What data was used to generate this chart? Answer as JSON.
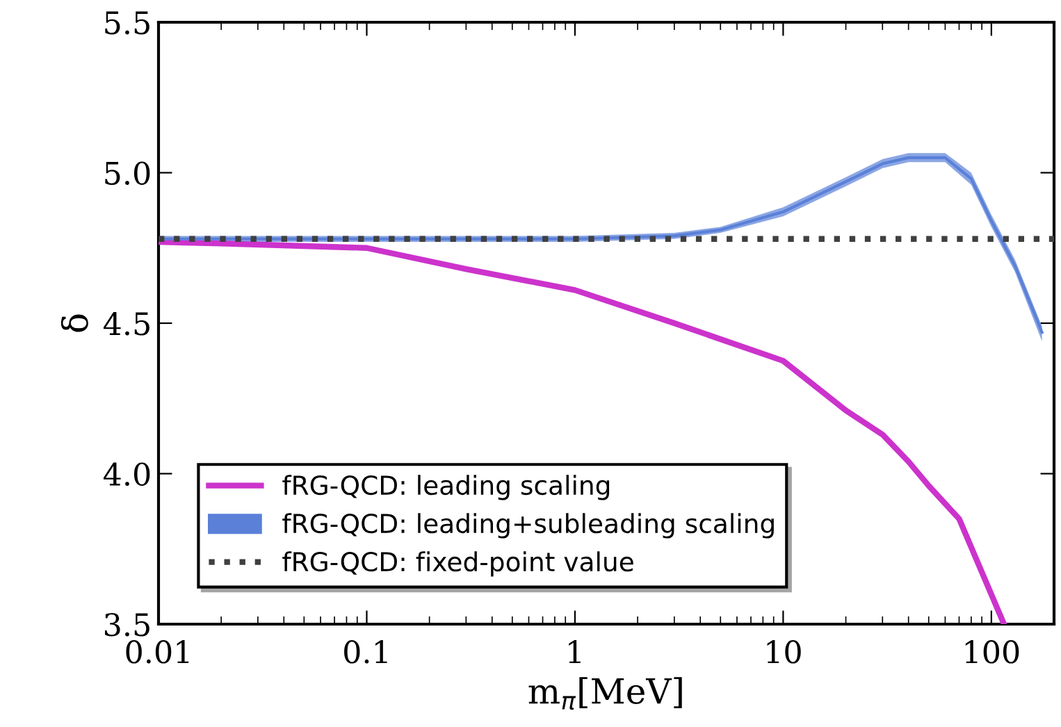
{
  "chart_data": {
    "type": "line",
    "xlabel": "m$_{π}$[MeV]",
    "ylabel": "δ",
    "log": "x",
    "xlim": [
      0.01,
      200
    ],
    "xticks": [
      {
        "value": 0.01,
        "label": "0.01"
      },
      {
        "value": 0.1,
        "label": "0.1"
      },
      {
        "value": 1,
        "label": "1"
      },
      {
        "value": 10,
        "label": "10"
      },
      {
        "value": 100,
        "label": "100"
      }
    ],
    "ylim": [
      3.5,
      5.5
    ],
    "yticks": [
      {
        "value": 3.5,
        "label": "3.5"
      },
      {
        "value": 4,
        "label": "4.0"
      },
      {
        "value": 4.5,
        "label": "4.5"
      },
      {
        "value": 5,
        "label": "5.0"
      },
      {
        "value": 5.5,
        "label": "5.5"
      }
    ],
    "grid": false,
    "legend": "bottom left",
    "series": [
      {
        "name": "fRG-QCD: leading scaling",
        "color": "#cc33cc",
        "x": [
          0.01,
          0.02,
          0.1,
          0.3,
          1,
          3,
          10,
          20,
          30,
          40,
          50,
          70,
          115
        ],
        "values": [
          4.77,
          4.765,
          4.75,
          4.68,
          4.61,
          4.5,
          4.375,
          4.21,
          4.13,
          4.04,
          3.96,
          3.85,
          3.5
        ]
      },
      {
        "name": "fRG-QCD: leading+subleading scaling",
        "color": "#5a80d8",
        "x": [
          0.01,
          0.1,
          1,
          3,
          5,
          10,
          20,
          30,
          40,
          60,
          80,
          100,
          130,
          175
        ],
        "values": [
          4.78,
          4.78,
          4.78,
          4.79,
          4.81,
          4.87,
          4.97,
          5.03,
          5.05,
          5.05,
          4.98,
          4.84,
          4.69,
          4.47
        ],
        "lower": [
          4.77,
          4.77,
          4.77,
          4.78,
          4.8,
          4.855,
          4.955,
          5.015,
          5.035,
          5.035,
          4.96,
          4.82,
          4.67,
          4.44
        ],
        "upper": [
          4.79,
          4.79,
          4.79,
          4.8,
          4.82,
          4.885,
          4.985,
          5.045,
          5.065,
          5.065,
          5.0,
          4.86,
          4.71,
          4.49
        ]
      },
      {
        "name": "fRG-QCD: fixed-point value",
        "color": "#404040",
        "line_style": "dotted",
        "x": [
          0.01,
          200
        ],
        "values": [
          4.78,
          4.78
        ]
      }
    ]
  }
}
